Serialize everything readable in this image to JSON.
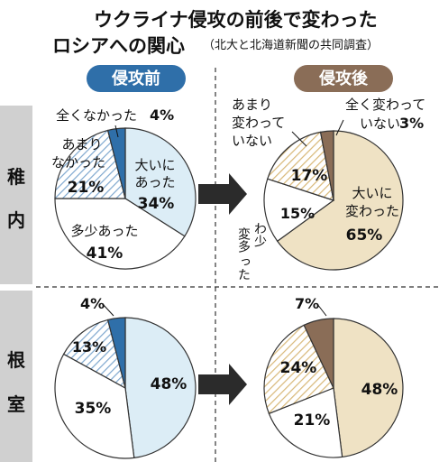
{
  "title": {
    "line1": "ウクライナ侵攻の前後で変わった",
    "line2": "ロシアへの関心",
    "source": "（北大と北海道新聞の共同調査）"
  },
  "periods": {
    "before": "侵攻前",
    "after": "侵攻後"
  },
  "regions": {
    "wakkanai": [
      "稚",
      "内"
    ],
    "nemuro": [
      "根",
      "室"
    ]
  },
  "categories": {
    "before": [
      "大いにあった",
      "多少あった",
      "あまりなかった",
      "全くなかった"
    ],
    "after": [
      "大いに変わった",
      "多少変わった",
      "あまり変わっていない",
      "全く変わっていない"
    ]
  },
  "label_lines": {
    "before_big": [
      "大いに",
      "あった"
    ],
    "before_some": [
      "多少あった"
    ],
    "before_little": [
      "あまり",
      "なかった"
    ],
    "before_none": "全くなかった",
    "after_big": [
      "大いに",
      "変わった"
    ],
    "after_some_col1": "変多",
    "after_some_col2": "わ少",
    "after_some_col3": "った",
    "after_little": [
      "あまり",
      "変わって",
      "いない"
    ],
    "after_none": [
      "全く変わって",
      "いない"
    ]
  },
  "colors": {
    "before_accent": "#2f6fa9",
    "before_big": "#dcedf6",
    "before_hatch": "#7fa8cf",
    "after_accent": "#8a6d57",
    "after_big": "#efe2c4",
    "after_hatch": "#d8b878",
    "region_bg": "#d0d0d0",
    "arrow": "#2b2b2b"
  },
  "chart_data": [
    {
      "type": "pie",
      "region": "稚内",
      "period": "侵攻前",
      "labels": [
        "大いにあった",
        "多少あった",
        "あまりなかった",
        "全くなかった"
      ],
      "values": [
        34,
        41,
        21,
        4
      ],
      "display": [
        "34%",
        "41%",
        "21%",
        "4%"
      ]
    },
    {
      "type": "pie",
      "region": "稚内",
      "period": "侵攻後",
      "labels": [
        "大いに変わった",
        "多少変わった",
        "あまり変わっていない",
        "全く変わっていない"
      ],
      "values": [
        65,
        15,
        17,
        3
      ],
      "display": [
        "65%",
        "15%",
        "17%",
        "3%"
      ]
    },
    {
      "type": "pie",
      "region": "根室",
      "period": "侵攻前",
      "labels": [
        "大いにあった",
        "多少あった",
        "あまりなかった",
        "全くなかった"
      ],
      "values": [
        48,
        35,
        13,
        4
      ],
      "display": [
        "48%",
        "35%",
        "13%",
        "4%"
      ]
    },
    {
      "type": "pie",
      "region": "根室",
      "period": "侵攻後",
      "labels": [
        "大いに変わった",
        "多少変わった",
        "あまり変わっていない",
        "全く変わっていない"
      ],
      "values": [
        48,
        21,
        24,
        7
      ],
      "display": [
        "48%",
        "21%",
        "24%",
        "7%"
      ]
    }
  ]
}
